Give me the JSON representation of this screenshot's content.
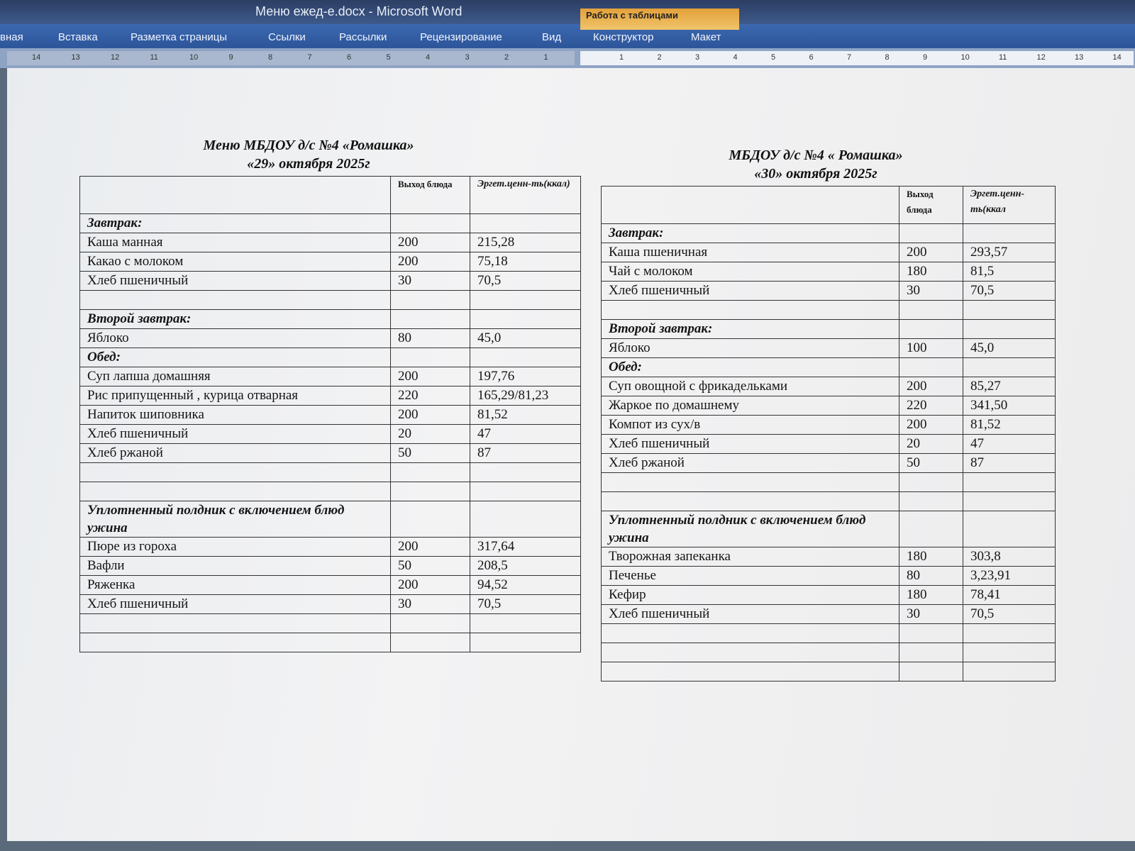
{
  "window": {
    "title": "Меню ежед-е.docx - Microsoft Word",
    "context_tab": "Работа с таблицами",
    "tabs": [
      "вная",
      "Вставка",
      "Разметка страницы",
      "Ссылки",
      "Рассылки",
      "Рецензирование",
      "Вид",
      "Конструктор",
      "Макет"
    ]
  },
  "ruler": {
    "left": [
      14,
      13,
      12,
      11,
      10,
      9,
      8,
      7,
      6,
      5,
      4,
      3,
      2,
      1
    ],
    "right": [
      1,
      2,
      3,
      4,
      5,
      6,
      7,
      8,
      9,
      10,
      11,
      12,
      13,
      14
    ]
  },
  "tables": [
    {
      "title": [
        "Меню МБДОУ д/с №4 «Ромашка»",
        "«29»  октября  2025г"
      ],
      "header": [
        "Выход блюда",
        "Эргет.ценн-ть(ккал)"
      ],
      "rows": [
        {
          "section": "Завтрак:"
        },
        [
          "Каша  манная",
          "200",
          "215,28"
        ],
        [
          "Какао  с молоком",
          "200",
          "75,18"
        ],
        [
          "Хлеб пшеничный",
          "30",
          "70,5"
        ],
        null,
        {
          "section": "Второй завтрак:"
        },
        [
          "Яблоко",
          "80",
          "45,0"
        ],
        {
          "section": "Обед:"
        },
        [
          "Суп лапша домашняя",
          "200",
          "197,76"
        ],
        [
          "Рис припущенный , курица отварная",
          "220",
          "165,29/81,23"
        ],
        [
          "Напиток шиповника",
          "200",
          "81,52"
        ],
        [
          "Хлеб пшеничный",
          "20",
          "47"
        ],
        [
          "Хлеб ржаной",
          "50",
          "87"
        ],
        null,
        null,
        {
          "section": "Уплотненный полдник с  включением блюд ужина"
        },
        [
          "Пюре из гороха",
          "200",
          "317,64"
        ],
        [
          "Вафли",
          "50",
          "208,5"
        ],
        [
          "Ряженка",
          "200",
          "94,52"
        ],
        [
          "Хлеб пшеничный",
          "30",
          "70,5"
        ],
        null,
        null
      ]
    },
    {
      "title": [
        "МБДОУ д/с №4 « Ромашка»",
        "«30» октября   2025г"
      ],
      "header": [
        "Выход блюда",
        "Эргет.ценн-ть(ккал"
      ],
      "rows": [
        {
          "section": "Завтрак:"
        },
        [
          "Каша пшеничная",
          "200",
          "293,57"
        ],
        [
          "Чай с молоком",
          "180",
          "81,5"
        ],
        [
          "Хлеб пшеничный",
          "30",
          "70,5"
        ],
        null,
        {
          "section": "Второй завтрак:"
        },
        [
          "Яблоко",
          "100",
          "45,0"
        ],
        {
          "section": "Обед:"
        },
        [
          "Суп овощной с фрикадельками",
          "200",
          "85,27"
        ],
        [
          "Жаркое по домашнему",
          "220",
          "341,50"
        ],
        [
          "Компот из сух/в",
          "200",
          "81,52"
        ],
        [
          "Хлеб пшеничный",
          "20",
          "47"
        ],
        [
          "Хлеб ржаной",
          "50",
          "87"
        ],
        null,
        null,
        {
          "section": "Уплотненный полдник с  включением блюд ужина"
        },
        [
          "Творожная запеканка",
          "180",
          "303,8"
        ],
        [
          "Печенье",
          "80",
          "3,23,91"
        ],
        [
          "Кефир",
          "180",
          "78,41"
        ],
        [
          "Хлеб пшеничный",
          "30",
          "70,5"
        ],
        null,
        null,
        null
      ]
    }
  ]
}
